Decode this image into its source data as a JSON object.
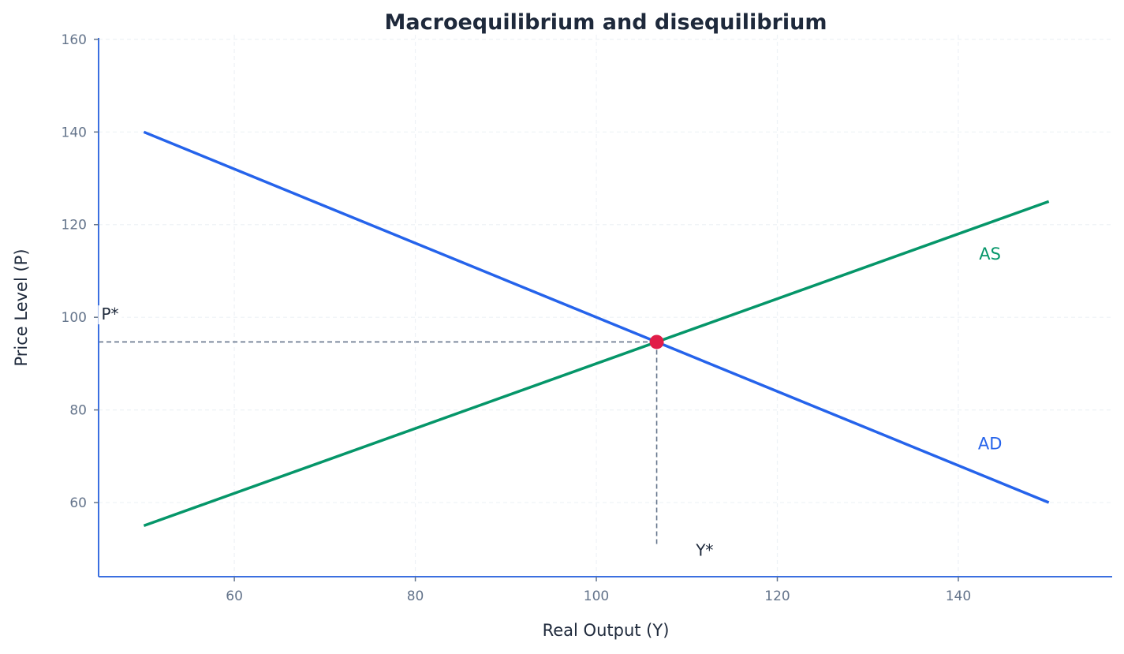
{
  "chart_data": {
    "type": "line",
    "title": "Macroequilibrium and disequilibrium",
    "xlabel": "Real Output (Y)",
    "ylabel": "Price Level (P)",
    "xlim": [
      45,
      157
    ],
    "ylim": [
      44,
      161
    ],
    "xticks": [
      60,
      80,
      100,
      120,
      140
    ],
    "yticks": [
      60,
      80,
      100,
      120,
      140,
      160
    ],
    "grid": true,
    "legend": "none (inline labels)",
    "series": [
      {
        "name": "AD",
        "color": "#2563eb",
        "x": [
          50,
          150
        ],
        "y": [
          140,
          60
        ],
        "label": "AD",
        "label_pos": [
          143.5,
          71.5
        ]
      },
      {
        "name": "AS",
        "color": "#059669",
        "x": [
          50,
          150
        ],
        "y": [
          55,
          125
        ],
        "label": "AS",
        "label_pos": [
          143.5,
          112.5
        ]
      }
    ],
    "equilibrium": {
      "x": 106.67,
      "y": 94.67,
      "color": "#e11d48"
    },
    "annotations": [
      {
        "text": "P*",
        "x": 45.3,
        "y": 99.5
      },
      {
        "text": "Y*",
        "x": 111,
        "y": 48.5
      }
    ],
    "guide_lines": {
      "color": "#64748b",
      "style": "dashed",
      "horizontal_to_y": 94.67,
      "vertical_to_x": 106.67,
      "vertical_bottom": 51
    }
  },
  "colors": {
    "axis": "#3b6fe0",
    "tick_label": "#64748b",
    "title": "#1e293b",
    "grid": "#eef2f6"
  }
}
